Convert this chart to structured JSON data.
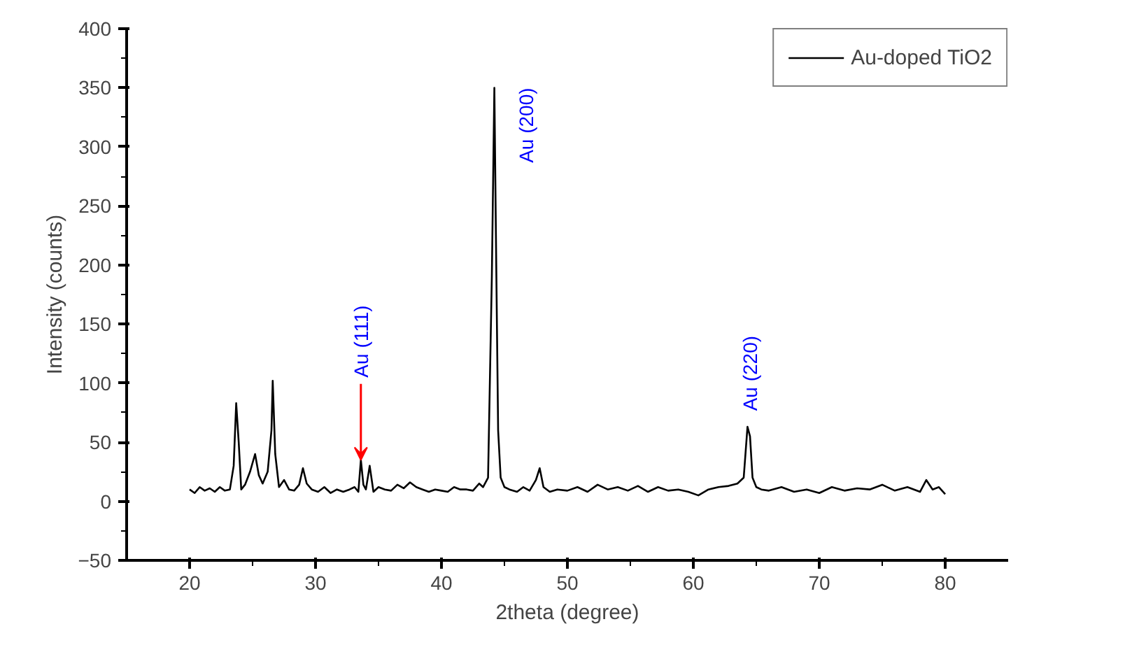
{
  "chart_data": {
    "type": "line",
    "xlabel": "2theta (degree)",
    "ylabel": "Intensity (counts)",
    "xlim": [
      15,
      85
    ],
    "ylim": [
      -50,
      400
    ],
    "xticks": [
      20,
      30,
      40,
      50,
      60,
      70,
      80
    ],
    "yticks": [
      -50,
      0,
      50,
      100,
      150,
      200,
      250,
      300,
      350,
      400
    ],
    "legend": "top right",
    "grid": false,
    "marker": "none",
    "line_style": "solid",
    "series": [
      {
        "name": "Au-doped TiO2",
        "color": "#000000",
        "x": [
          20,
          20.4,
          20.8,
          21.2,
          21.6,
          22,
          22.4,
          22.8,
          23.2,
          23.5,
          23.7,
          23.9,
          24.1,
          24.4,
          24.8,
          25.2,
          25.5,
          25.8,
          26.2,
          26.5,
          26.6,
          26.8,
          27.1,
          27.5,
          27.9,
          28.3,
          28.7,
          29,
          29.3,
          29.7,
          30.2,
          30.7,
          31.2,
          31.7,
          32.2,
          32.7,
          33.1,
          33.4,
          33.6,
          33.8,
          34,
          34.3,
          34.6,
          35,
          35.5,
          36,
          36.5,
          37,
          37.5,
          38,
          38.5,
          39,
          39.5,
          40,
          40.5,
          41,
          41.5,
          42,
          42.5,
          43,
          43.3,
          43.7,
          44,
          44.2,
          44.35,
          44.5,
          44.7,
          45,
          45.4,
          46,
          46.5,
          47,
          47.5,
          47.8,
          48.1,
          48.6,
          49.2,
          50,
          50.8,
          51.6,
          52.4,
          53.2,
          54,
          54.8,
          55.6,
          56.4,
          57.2,
          58,
          58.8,
          59.6,
          60.4,
          61.2,
          62,
          62.8,
          63.5,
          64,
          64.3,
          64.5,
          64.7,
          65,
          65.4,
          66,
          67,
          68,
          69,
          70,
          71,
          72,
          73,
          74,
          75,
          76,
          77,
          78,
          78.5,
          79,
          79.5,
          80
        ],
        "values": [
          10,
          7,
          12,
          9,
          11,
          8,
          12,
          9,
          10,
          30,
          83,
          50,
          10,
          14,
          25,
          40,
          22,
          15,
          25,
          60,
          102,
          40,
          12,
          18,
          10,
          9,
          14,
          28,
          15,
          10,
          8,
          12,
          7,
          10,
          8,
          10,
          12,
          8,
          35,
          14,
          10,
          30,
          8,
          12,
          10,
          9,
          14,
          11,
          16,
          12,
          10,
          8,
          10,
          9,
          8,
          12,
          10,
          10,
          9,
          15,
          12,
          20,
          190,
          350,
          200,
          60,
          20,
          12,
          10,
          8,
          12,
          9,
          18,
          28,
          12,
          8,
          10,
          9,
          12,
          8,
          14,
          10,
          12,
          9,
          13,
          8,
          12,
          9,
          10,
          8,
          5,
          10,
          12,
          13,
          15,
          20,
          63,
          55,
          20,
          12,
          10,
          9,
          12,
          8,
          10,
          7,
          12,
          9,
          11,
          10,
          14,
          9,
          12,
          8,
          18,
          10,
          12,
          6
        ]
      }
    ],
    "annotations": [
      {
        "text": "Au (111)",
        "x": 33.6,
        "y": 35
      },
      {
        "text": "Au (200)",
        "x": 44.2,
        "y": 350
      },
      {
        "text": "Au (220)",
        "x": 64.5,
        "y": 63
      }
    ]
  }
}
